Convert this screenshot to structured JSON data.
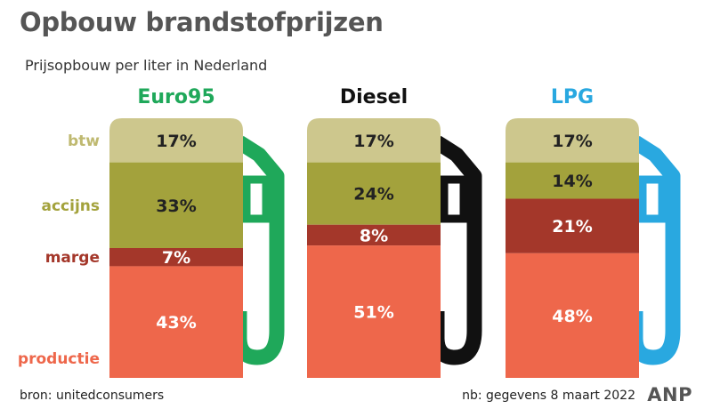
{
  "title": "Opbouw brandstofprijzen",
  "subtitle": "Prijsopbouw per liter in Nederland",
  "source": "bron: unitedconsumers",
  "note": "nb: gegevens 8 maart 2022",
  "logo": "ANP",
  "colors": {
    "btw": "#cdc78d",
    "accijns": "#a3a23c",
    "marge": "#a4372a",
    "productie": "#ee674b",
    "euro95": "#1fa85a",
    "diesel": "#111111",
    "lpg": "#29a8e0"
  },
  "chart_data": {
    "type": "bar",
    "stacked": true,
    "unit": "%",
    "categories": [
      "Euro95",
      "Diesel",
      "LPG"
    ],
    "series": [
      {
        "name": "btw",
        "values": [
          17,
          17,
          17
        ]
      },
      {
        "name": "accijns",
        "values": [
          33,
          24,
          14
        ]
      },
      {
        "name": "marge",
        "values": [
          7,
          8,
          21
        ]
      },
      {
        "name": "productie",
        "values": [
          43,
          51,
          48
        ]
      }
    ],
    "value_labels": [
      [
        "17%",
        "33%",
        "7%",
        "43%"
      ],
      [
        "17%",
        "24%",
        "8%",
        "51%"
      ],
      [
        "17%",
        "14%",
        "21%",
        "48%"
      ]
    ]
  }
}
